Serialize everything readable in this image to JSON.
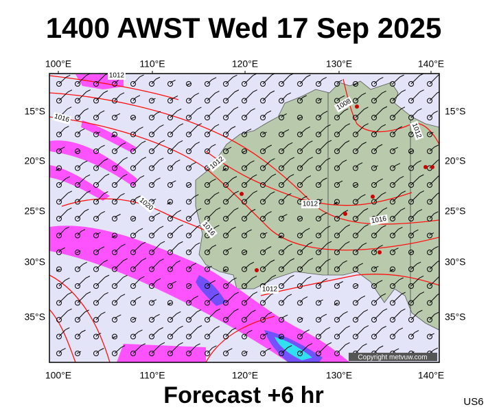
{
  "header": {
    "title": "1400 AWST Wed 17 Sep 2025"
  },
  "map": {
    "lon_labels": [
      "100°E",
      "110°E",
      "120°E",
      "130°E",
      "140°E"
    ],
    "lat_labels": [
      "15°S",
      "20°S",
      "25°S",
      "30°S",
      "35°S"
    ],
    "isobar_labels": [
      "1012",
      "1016",
      "1020",
      "1012",
      "1016",
      "1012",
      "1016",
      "1012",
      "1008",
      "1012"
    ],
    "copyright": "Copyright metvuw.com"
  },
  "footer": {
    "caption": "Forecast +6 hr",
    "code": "US6"
  }
}
